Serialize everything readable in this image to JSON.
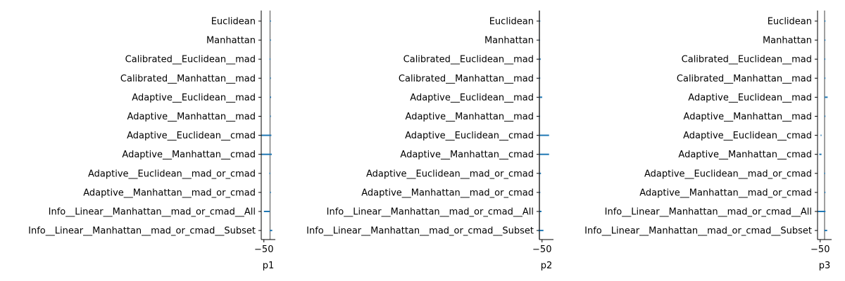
{
  "chart_data": {
    "type": "horizontal-bar-error",
    "categories": [
      "Euclidean",
      "Manhattan",
      "Calibrated__Euclidean__mad",
      "Calibrated__Manhattan__mad",
      "Adaptive__Euclidean__mad",
      "Adaptive__Manhattan__mad",
      "Adaptive__Euclidean__cmad",
      "Adaptive__Manhattan__cmad",
      "Adaptive__Euclidean__mad_or_cmad",
      "Adaptive__Manhattan__mad_or_cmad",
      "Info__Linear__Manhattan__mad_or_cmad__All",
      "Info__Linear__Manhattan__mad_or_cmad__Subset"
    ],
    "panels": [
      {
        "xlabel": "p1",
        "xlim": [
          -53,
          -37
        ],
        "xticks": [
          -50
        ],
        "reference_line": -43,
        "segments": [
          [
            -43,
            -43
          ],
          [
            -43,
            -43
          ],
          [
            -43.5,
            -42.8
          ],
          [
            -43,
            -43
          ],
          [
            -43.1,
            -41.8
          ],
          [
            -43,
            -43
          ],
          [
            -53,
            -41.5
          ],
          [
            -53,
            -41.0
          ],
          [
            -43.8,
            -42.9
          ],
          [
            -43,
            -43
          ],
          [
            -50.0,
            -43.2
          ],
          [
            -43.3,
            -40.5
          ]
        ]
      },
      {
        "xlabel": "p2",
        "xlim": [
          -53,
          -37
        ],
        "xticks": [
          -50
        ],
        "reference_line": -53,
        "segments": [
          [
            -53,
            -53
          ],
          [
            -53.2,
            -52.8
          ],
          [
            -53.1,
            -51.5
          ],
          [
            -53,
            -53
          ],
          [
            -53.0,
            -49.8
          ],
          [
            -53.2,
            -52.4
          ],
          [
            -53.0,
            -42.0
          ],
          [
            -53.0,
            -42.0
          ],
          [
            -53.1,
            -51.2
          ],
          [
            -53.1,
            -52.0
          ],
          [
            -53.1,
            -50.6
          ],
          [
            -54.3,
            -48.4
          ]
        ]
      },
      {
        "xlabel": "p3",
        "xlim": [
          -53,
          -37
        ],
        "xticks": [
          -50
        ],
        "reference_line": -45,
        "segments": [
          [
            -45,
            -45
          ],
          [
            -45,
            -45
          ],
          [
            -45.1,
            -44.3
          ],
          [
            -45,
            -45
          ],
          [
            -45.0,
            -41.5
          ],
          [
            -45,
            -45
          ],
          [
            -49.5,
            -48.5
          ],
          [
            -51.0,
            -48.5
          ],
          [
            -45.4,
            -44.7
          ],
          [
            -45,
            -45
          ],
          [
            -52.5,
            -44.0
          ],
          [
            -45.2,
            -42.0
          ]
        ]
      }
    ],
    "colors": {
      "segment": "#1f77b4",
      "reference": "#808080",
      "axis": "#000000"
    },
    "grid": false,
    "legend": "none"
  }
}
